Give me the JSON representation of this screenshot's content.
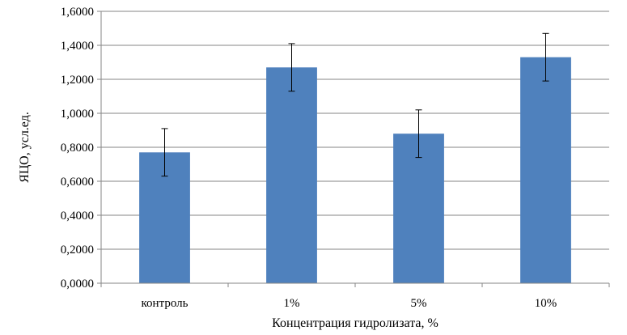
{
  "chart_data": {
    "type": "bar",
    "categories": [
      "контроль",
      "1%",
      "5%",
      "10%"
    ],
    "values": [
      0.77,
      1.27,
      0.88,
      1.33
    ],
    "error": [
      0.14,
      0.14,
      0.14,
      0.14
    ],
    "xlabel": "Концентрация гидролизата, %",
    "ylabel": "ЯЦО, усл.ед.",
    "ylim": [
      0,
      1.6
    ],
    "yticks": [
      0,
      0.2,
      0.4,
      0.6,
      0.8,
      1.0,
      1.2,
      1.4,
      1.6
    ],
    "ytick_labels": [
      "0,0000",
      "0,2000",
      "0,4000",
      "0,6000",
      "0,8000",
      "1,0000",
      "1,2000",
      "1,4000",
      "1,6000"
    ],
    "grid": true,
    "legend": "none",
    "bar_color": "#4F81BD"
  }
}
